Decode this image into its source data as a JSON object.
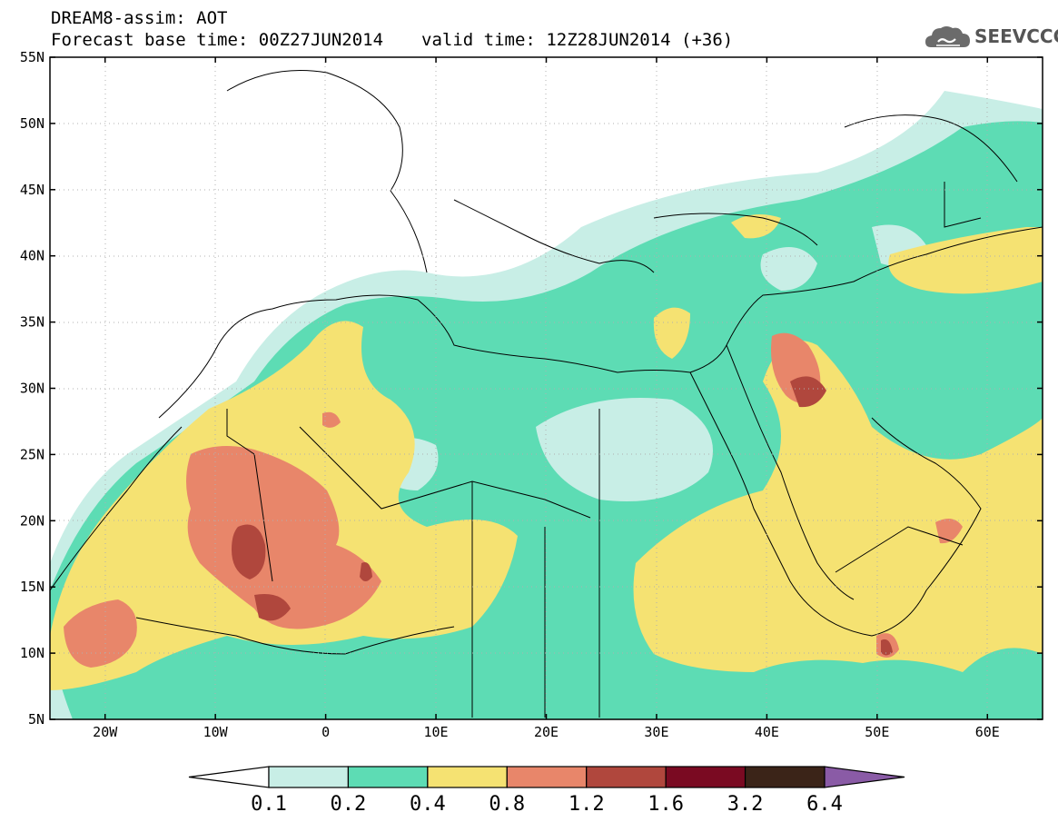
{
  "header": {
    "title_line1": "DREAM8-assim: AOT",
    "base_label": "Forecast base time: 00Z27JUN2014",
    "valid_label": "valid time: 12Z28JUN2014 (+36)",
    "logo_text": "SEEVCCC"
  },
  "axes": {
    "lat_labels": [
      "55N",
      "50N",
      "45N",
      "40N",
      "35N",
      "30N",
      "25N",
      "20N",
      "15N",
      "10N",
      "5N"
    ],
    "lon_labels": [
      "20W",
      "10W",
      "0",
      "10E",
      "20E",
      "30E",
      "40E",
      "50E",
      "60E"
    ],
    "lat_range": [
      5,
      55
    ],
    "lon_range": [
      -25,
      65
    ]
  },
  "colorbar": {
    "levels": [
      "0.1",
      "0.2",
      "0.4",
      "0.8",
      "1.2",
      "1.6",
      "3.2",
      "6.4"
    ],
    "colors": [
      "#ffffff",
      "#c8eee6",
      "#5ddcb4",
      "#f5e272",
      "#e8866a",
      "#b0473d",
      "#7a0a22",
      "#3b2418",
      "#8a5ba6"
    ]
  }
}
